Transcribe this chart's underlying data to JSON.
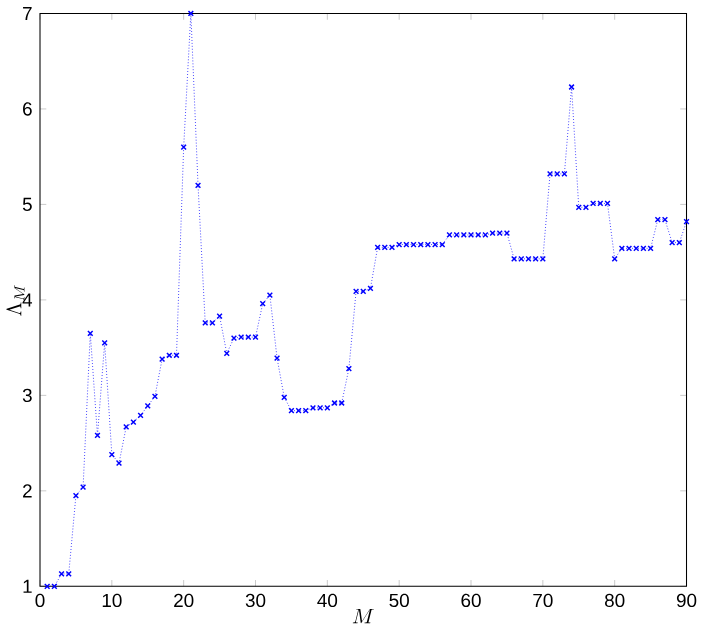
{
  "chart_data": {
    "type": "line",
    "xlabel": "M",
    "ylabel": "\\Lambda_M",
    "x": [
      1,
      2,
      3,
      4,
      5,
      6,
      7,
      8,
      9,
      10,
      11,
      12,
      13,
      14,
      15,
      16,
      17,
      18,
      19,
      20,
      21,
      22,
      23,
      24,
      25,
      26,
      27,
      28,
      29,
      30,
      31,
      32,
      33,
      34,
      35,
      36,
      37,
      38,
      39,
      40,
      41,
      42,
      43,
      44,
      45,
      46,
      47,
      48,
      49,
      50,
      51,
      52,
      53,
      54,
      55,
      56,
      57,
      58,
      59,
      60,
      61,
      62,
      63,
      64,
      65,
      66,
      67,
      68,
      69,
      70,
      71,
      72,
      73,
      74,
      75,
      76,
      77,
      78,
      79,
      80,
      81,
      82,
      83,
      84,
      85,
      86,
      87,
      88,
      89,
      90
    ],
    "series": [
      {
        "color": "#0000ff",
        "values": [
          1.0,
          1.0,
          1.13,
          1.13,
          1.95,
          2.04,
          3.65,
          2.58,
          3.55,
          2.38,
          2.29,
          2.67,
          2.72,
          2.79,
          2.89,
          2.99,
          3.38,
          3.42,
          3.42,
          5.6,
          7.0,
          5.2,
          3.76,
          3.76,
          3.83,
          3.44,
          3.6,
          3.61,
          3.61,
          3.61,
          3.96,
          4.05,
          3.39,
          2.98,
          2.84,
          2.84,
          2.84,
          2.87,
          2.87,
          2.87,
          2.92,
          2.92,
          3.28,
          4.09,
          4.09,
          4.12,
          4.55,
          4.55,
          4.55,
          4.58,
          4.58,
          4.58,
          4.58,
          4.58,
          4.58,
          4.58,
          4.68,
          4.68,
          4.68,
          4.68,
          4.68,
          4.68,
          4.7,
          4.7,
          4.7,
          4.43,
          4.43,
          4.43,
          4.43,
          4.43,
          5.32,
          5.32,
          5.32,
          6.23,
          4.97,
          4.97,
          5.01,
          5.01,
          5.01,
          4.43,
          4.54,
          4.54,
          4.54,
          4.54,
          4.54,
          4.84,
          4.84,
          4.6,
          4.6,
          4.82
        ]
      }
    ],
    "xlim": [
      0,
      90
    ],
    "ylim": [
      1,
      7
    ],
    "xticks": [
      0,
      10,
      20,
      30,
      40,
      50,
      60,
      70,
      80,
      90
    ],
    "yticks": [
      1,
      2,
      3,
      4,
      5,
      6,
      7
    ],
    "marker": "cross",
    "line_style": "dotted",
    "grid": false
  }
}
